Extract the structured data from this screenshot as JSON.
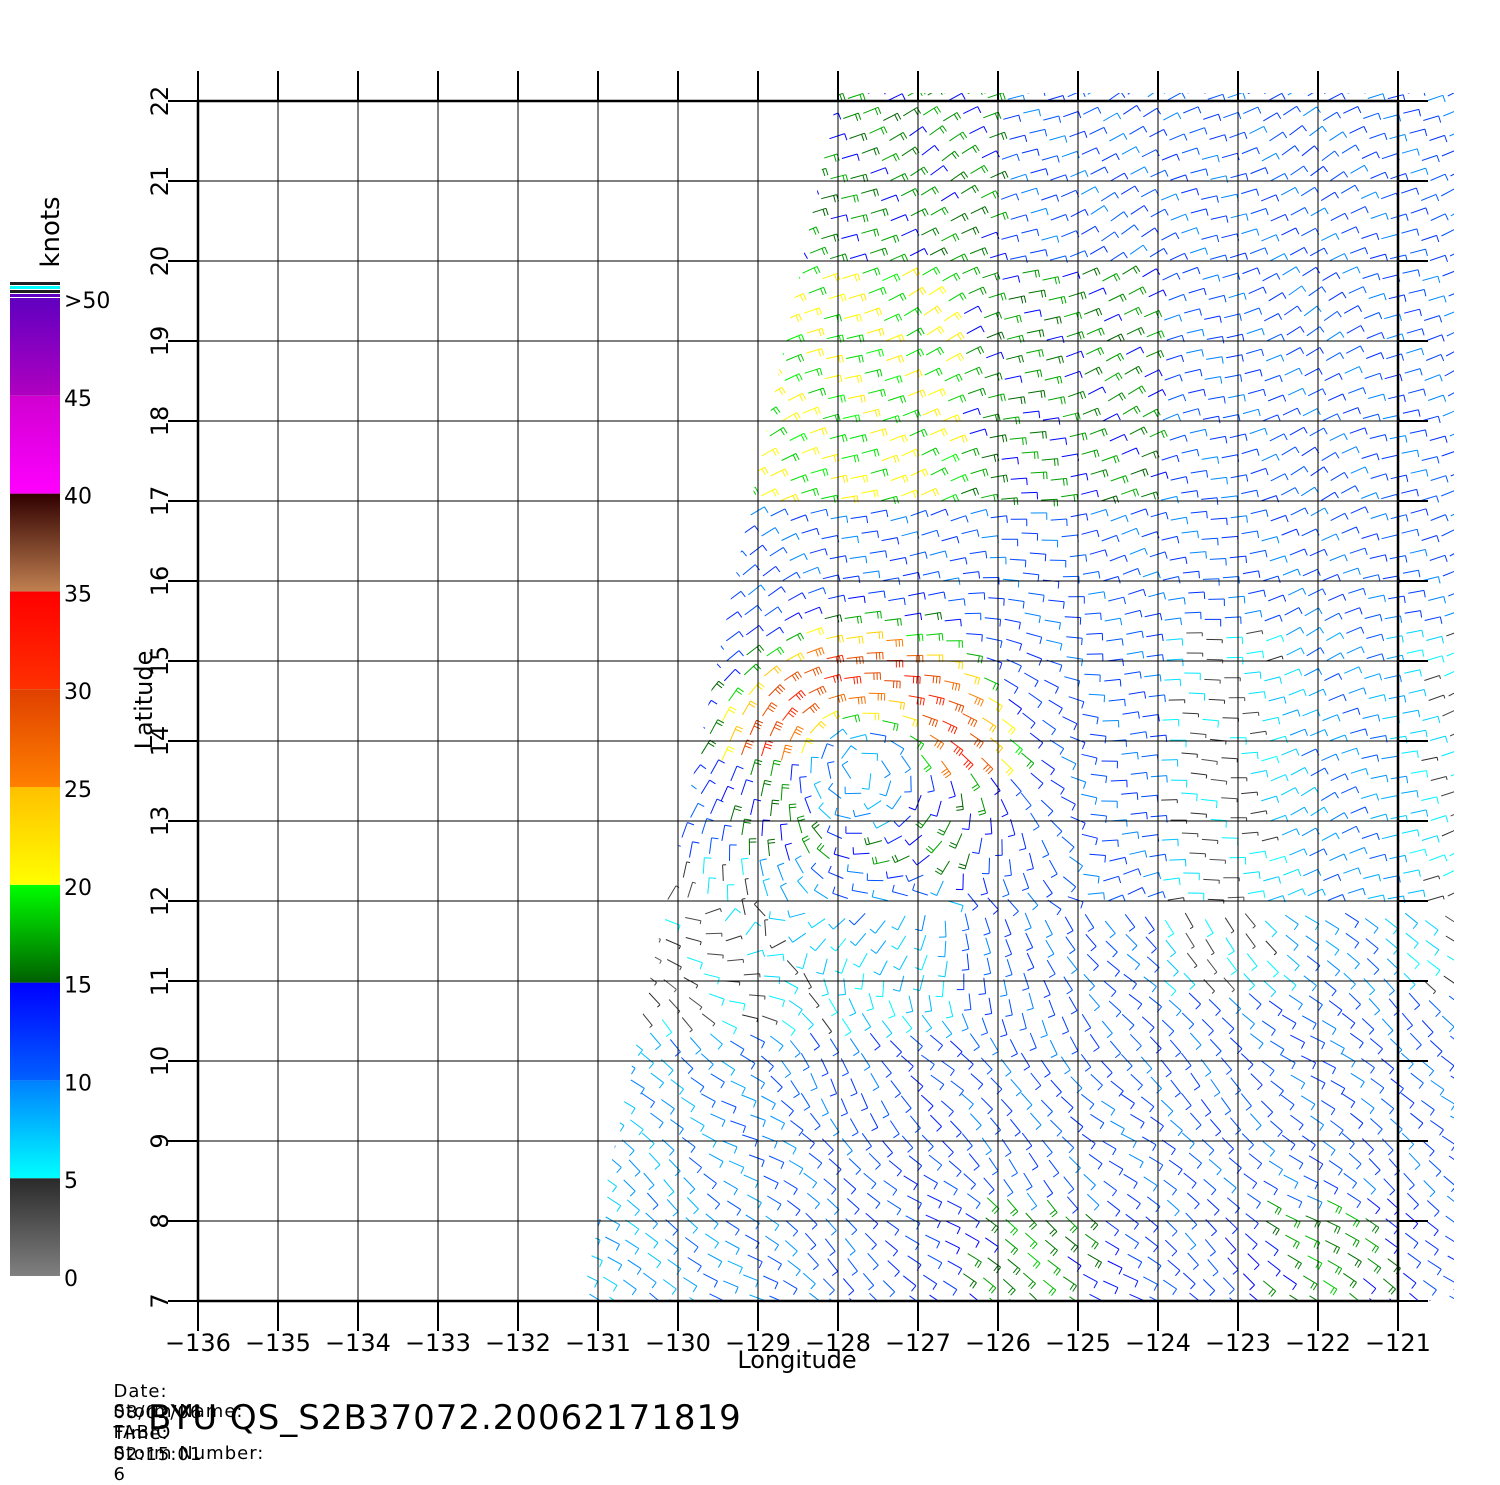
{
  "chart_data": {
    "type": "wind-barb-map",
    "xlabel": "Longitude",
    "ylabel": "Latitude",
    "xlim": [
      -136,
      -120.5
    ],
    "ylim": [
      7,
      22
    ],
    "x_ticks": [
      "-136",
      "-135",
      "-134",
      "-133",
      "-132",
      "-131",
      "-130",
      "-129",
      "-128",
      "-127",
      "-126",
      "-125",
      "-124",
      "-123",
      "-122",
      "-121"
    ],
    "y_ticks": [
      "7",
      "8",
      "9",
      "10",
      "11",
      "12",
      "13",
      "14",
      "15",
      "16",
      "17",
      "18",
      "19",
      "20",
      "21",
      "22"
    ],
    "grid": true,
    "colorbar": {
      "unit": "knots",
      "labels": [
        "0",
        "5",
        "10",
        "15",
        "20",
        "25",
        "30",
        "35",
        "40",
        "45",
        ">50"
      ],
      "segments": [
        {
          "from": 0,
          "to": 5,
          "colors": [
            "#808080",
            "#2a2a2a"
          ]
        },
        {
          "from": 5,
          "to": 10,
          "colors": [
            "#00ffff",
            "#0080ff"
          ]
        },
        {
          "from": 10,
          "to": 15,
          "colors": [
            "#0060ff",
            "#0000ff"
          ]
        },
        {
          "from": 15,
          "to": 20,
          "colors": [
            "#006000",
            "#00ff00"
          ]
        },
        {
          "from": 20,
          "to": 25,
          "colors": [
            "#ffff00",
            "#ffc000"
          ]
        },
        {
          "from": 25,
          "to": 30,
          "colors": [
            "#ff8000",
            "#e04000"
          ]
        },
        {
          "from": 30,
          "to": 35,
          "colors": [
            "#ff3000",
            "#ff0000"
          ]
        },
        {
          "from": 35,
          "to": 40,
          "colors": [
            "#c08050",
            "#300000"
          ]
        },
        {
          "from": 40,
          "to": 45,
          "colors": [
            "#ff00ff",
            "#d000d0"
          ]
        },
        {
          "from": 45,
          "to": 50,
          "colors": [
            "#b000c0",
            "#6000c0"
          ]
        }
      ]
    },
    "storm_center": {
      "lon": -127.7,
      "lat": 13.6
    },
    "swath_corners": [
      [
        -128.0,
        22.1
      ],
      [
        -120.3,
        22.1
      ],
      [
        -120.3,
        7.0
      ],
      [
        -131.2,
        7.0
      ]
    ]
  },
  "info": {
    "date_label": "Date:",
    "date": "08/02/06",
    "time_label": "Time:",
    "time": "02:15:01",
    "storm_name_label": "Storm Name:",
    "storm_name": "FABIO",
    "storm_number_label": "Storm Number:",
    "storm_number": "6",
    "product": "BYU QS_S2B37072.20062171819"
  }
}
